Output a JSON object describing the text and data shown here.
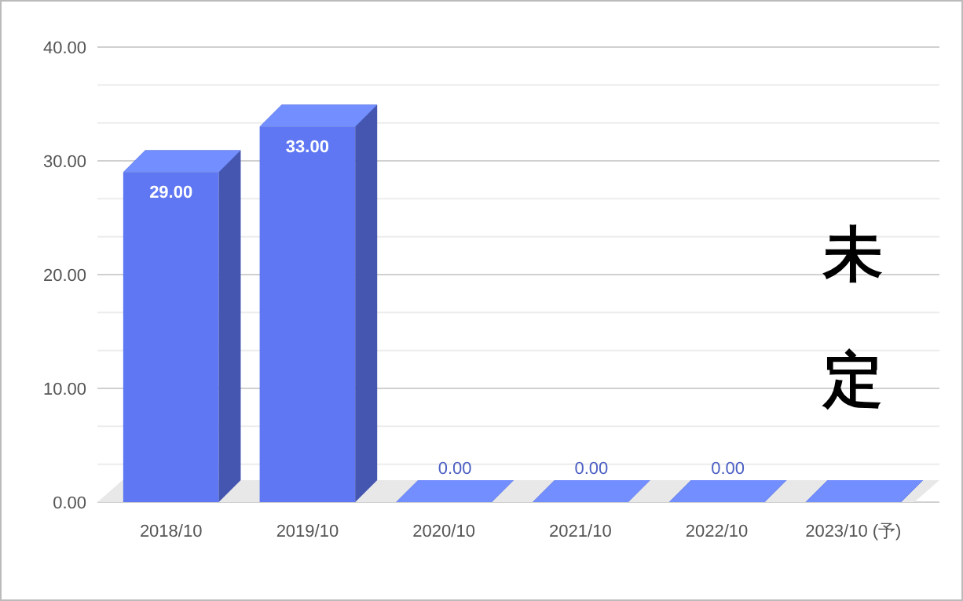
{
  "chart_data": {
    "type": "bar",
    "categories": [
      "2018/10",
      "2019/10",
      "2020/10",
      "2021/10",
      "2022/10",
      "2023/10 (予)"
    ],
    "values": [
      29,
      33,
      0,
      0,
      0,
      0
    ],
    "value_labels": [
      "29.00",
      "33.00",
      "0.00",
      "0.00",
      "0.00",
      null
    ],
    "color": "#5f77f2",
    "ylim": [
      0,
      40
    ],
    "yticks": [
      {
        "value": 0,
        "label": "0.00"
      },
      {
        "value": 3.33,
        "label": null
      },
      {
        "value": 6.67,
        "label": null
      },
      {
        "value": 10,
        "label": "10.00"
      },
      {
        "value": 13.33,
        "label": null
      },
      {
        "value": 16.67,
        "label": null
      },
      {
        "value": 20,
        "label": "20.00"
      },
      {
        "value": 23.33,
        "label": null
      },
      {
        "value": 26.67,
        "label": null
      },
      {
        "value": 30,
        "label": "30.00"
      },
      {
        "value": 33.33,
        "label": null
      },
      {
        "value": 36.67,
        "label": null
      },
      {
        "value": 40,
        "label": "40.00"
      }
    ],
    "grid": true,
    "annotations": [
      "未定"
    ]
  }
}
